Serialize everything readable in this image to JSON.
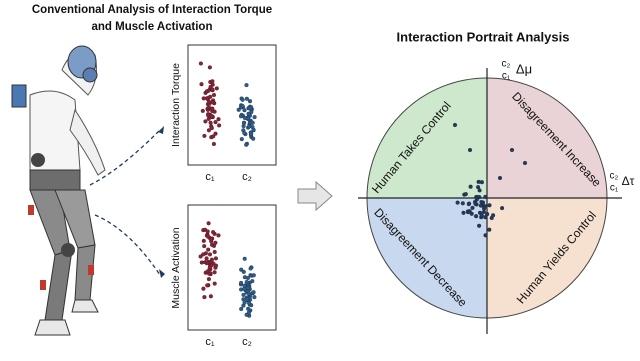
{
  "left_panel": {
    "title_line1": "Conventional Analysis of Interaction Torque",
    "title_line2": "and Muscle Activation",
    "plots": [
      {
        "y_label": "Interaction Torque",
        "x_ticks": [
          "c₁",
          "c₂"
        ]
      },
      {
        "y_label": "Muscle Activation",
        "x_ticks": [
          "c₁",
          "c₂"
        ]
      }
    ]
  },
  "right_panel": {
    "title": "Interaction Portrait Analysis",
    "y_axis_label": {
      "fraction_top": "c₂",
      "fraction_bottom": "c₁",
      "symbol": "Δμ"
    },
    "x_axis_label": {
      "fraction_top": "c₂",
      "fraction_bottom": "c₁",
      "symbol": "Δτ"
    },
    "quadrants": [
      "Human Takes Control",
      "Disagreement Increase",
      "Disagreement Decrease",
      "Human Yields Control"
    ]
  }
}
